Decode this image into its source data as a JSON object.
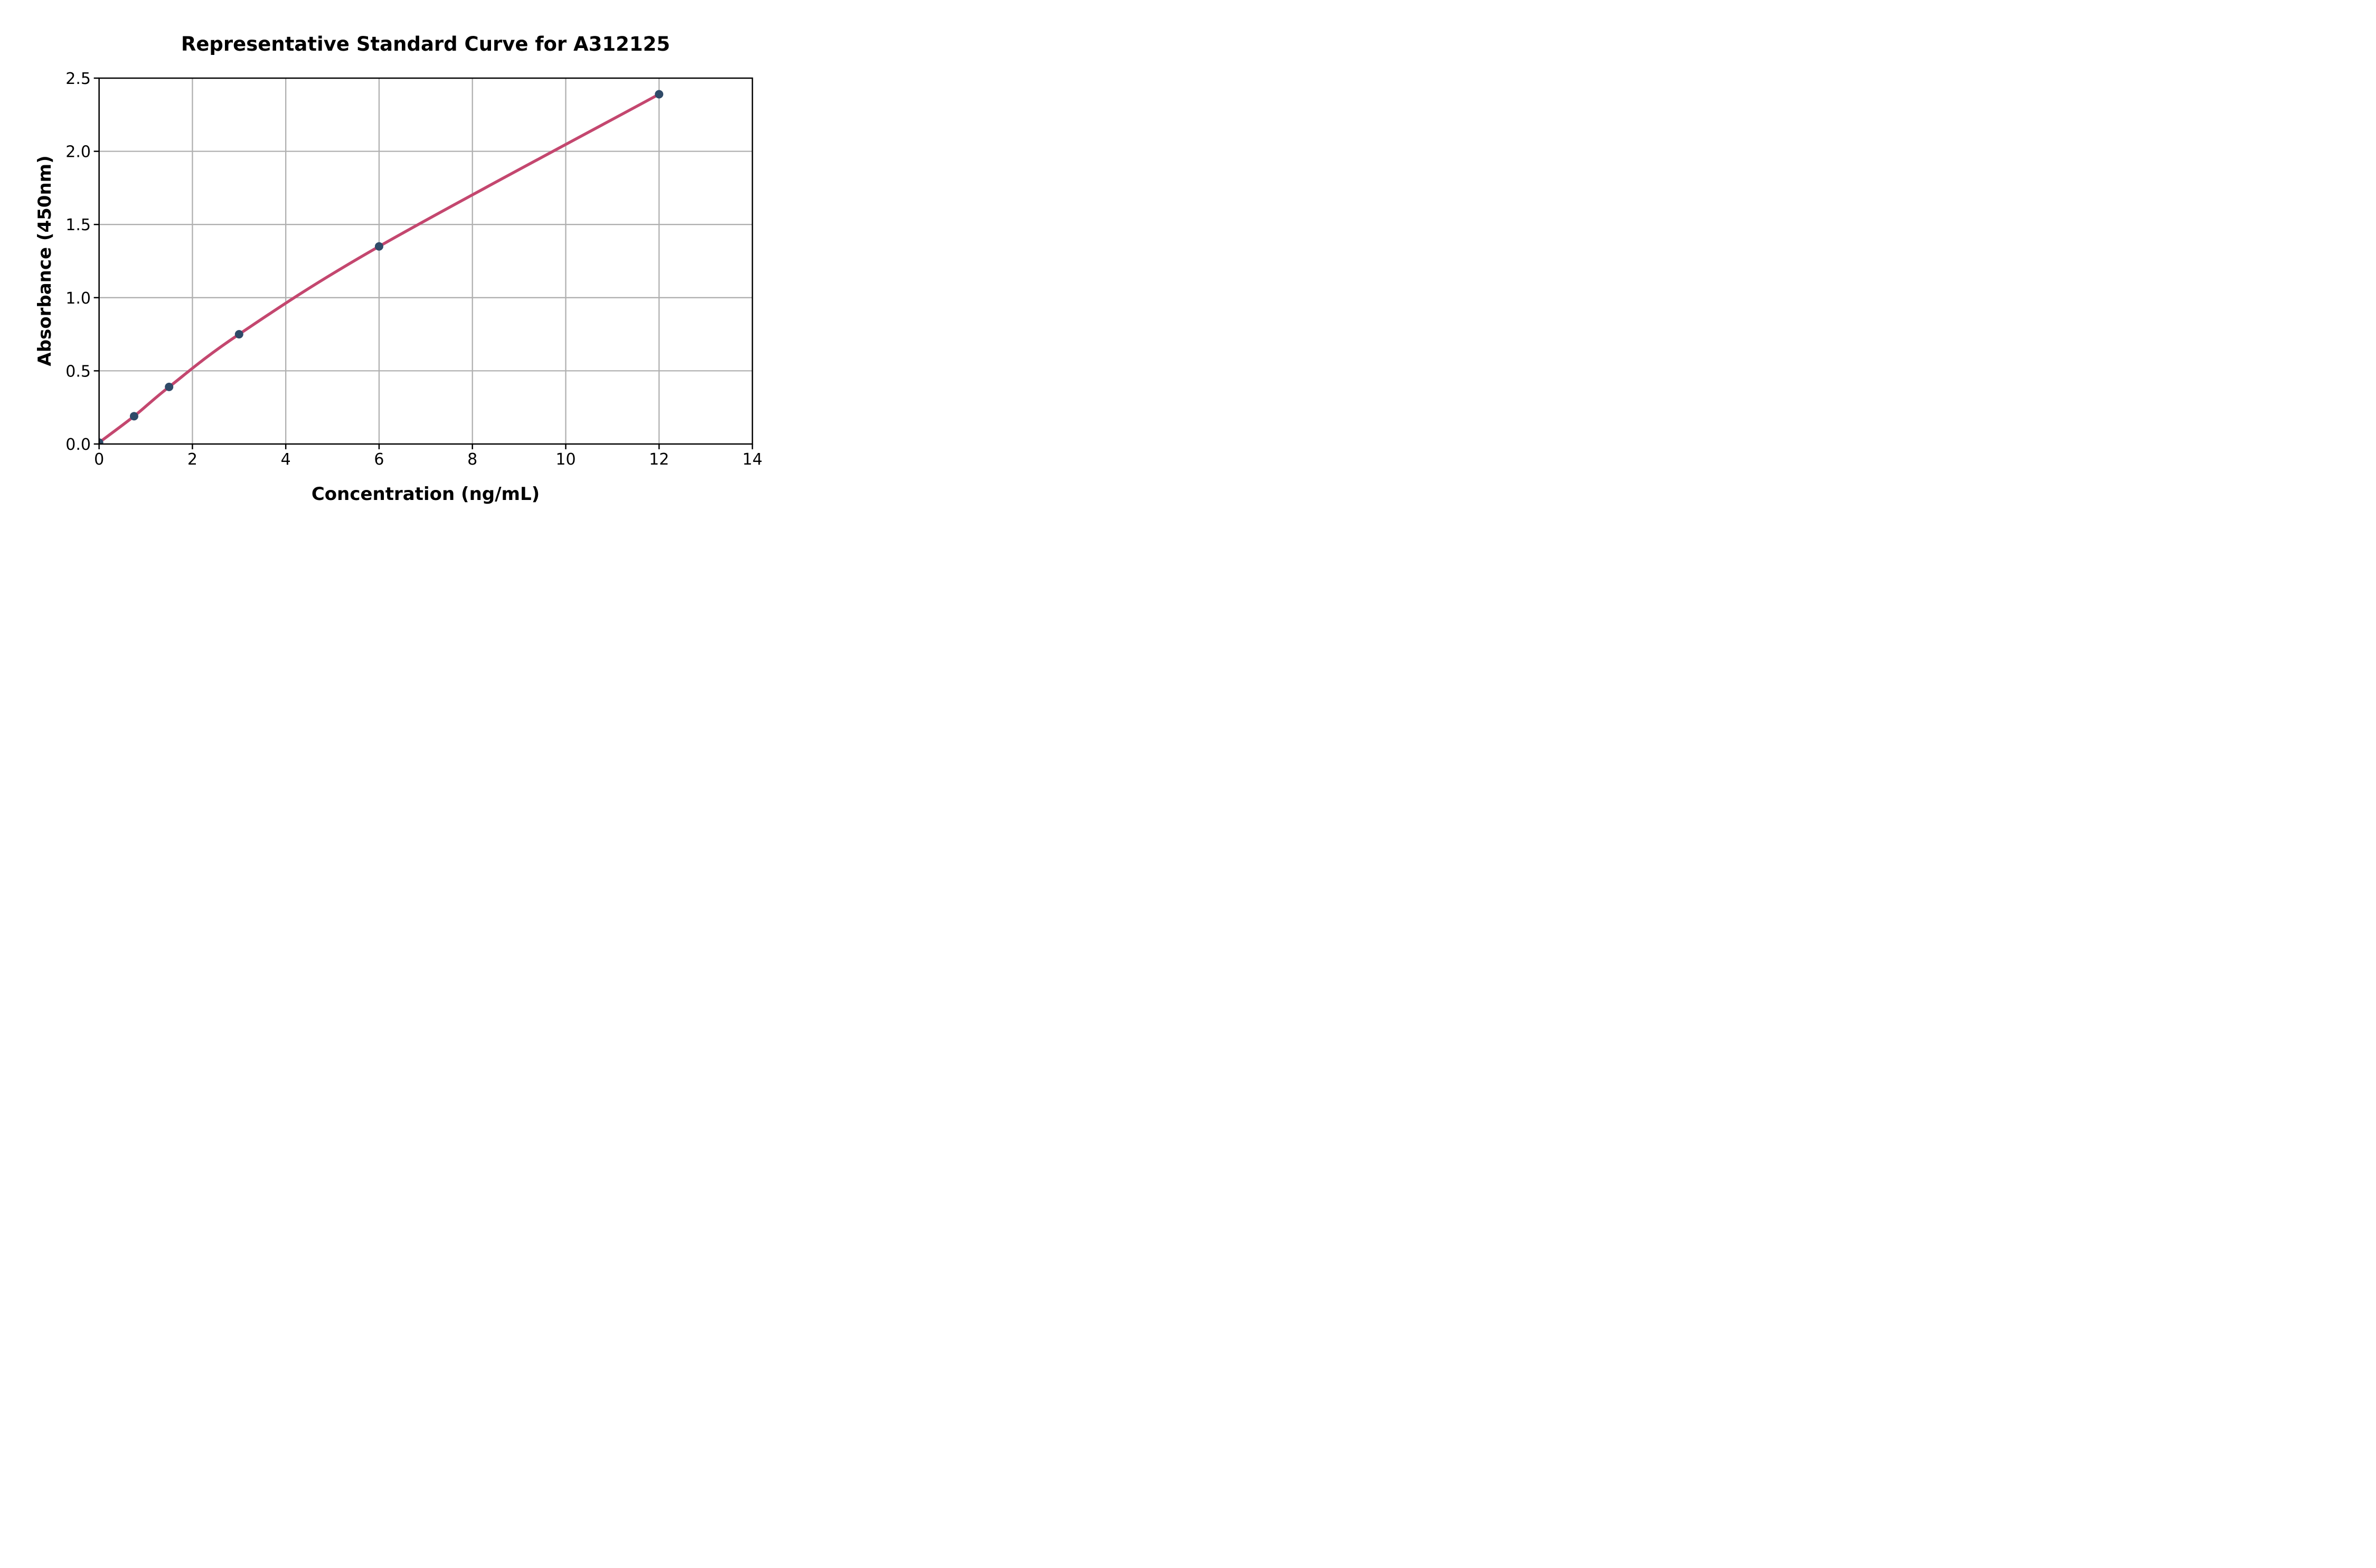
{
  "figure": {
    "background": "#ffffff"
  },
  "chart_data": {
    "type": "line",
    "title": "Representative Standard Curve for A312125",
    "xlabel": "Concentration (ng/mL)",
    "ylabel": "Absorbance (450nm)",
    "x": [
      0,
      0.75,
      1.5,
      3,
      6,
      12
    ],
    "y": [
      0.01,
      0.19,
      0.39,
      0.75,
      1.35,
      2.39
    ],
    "xlim": [
      0,
      14
    ],
    "ylim": [
      0,
      2.5
    ],
    "xticks": [
      "0",
      "2",
      "4",
      "6",
      "8",
      "10",
      "12",
      "14"
    ],
    "yticks": [
      "0.0",
      "0.5",
      "1.0",
      "1.5",
      "2.0",
      "2.5"
    ],
    "grid": true,
    "legend_position": "none",
    "line_color": "#C4476F",
    "marker_color": "#2F4A68",
    "grid_color": "#B0B0B0",
    "axis_color": "#000000",
    "tick_label_color": "#000000"
  }
}
